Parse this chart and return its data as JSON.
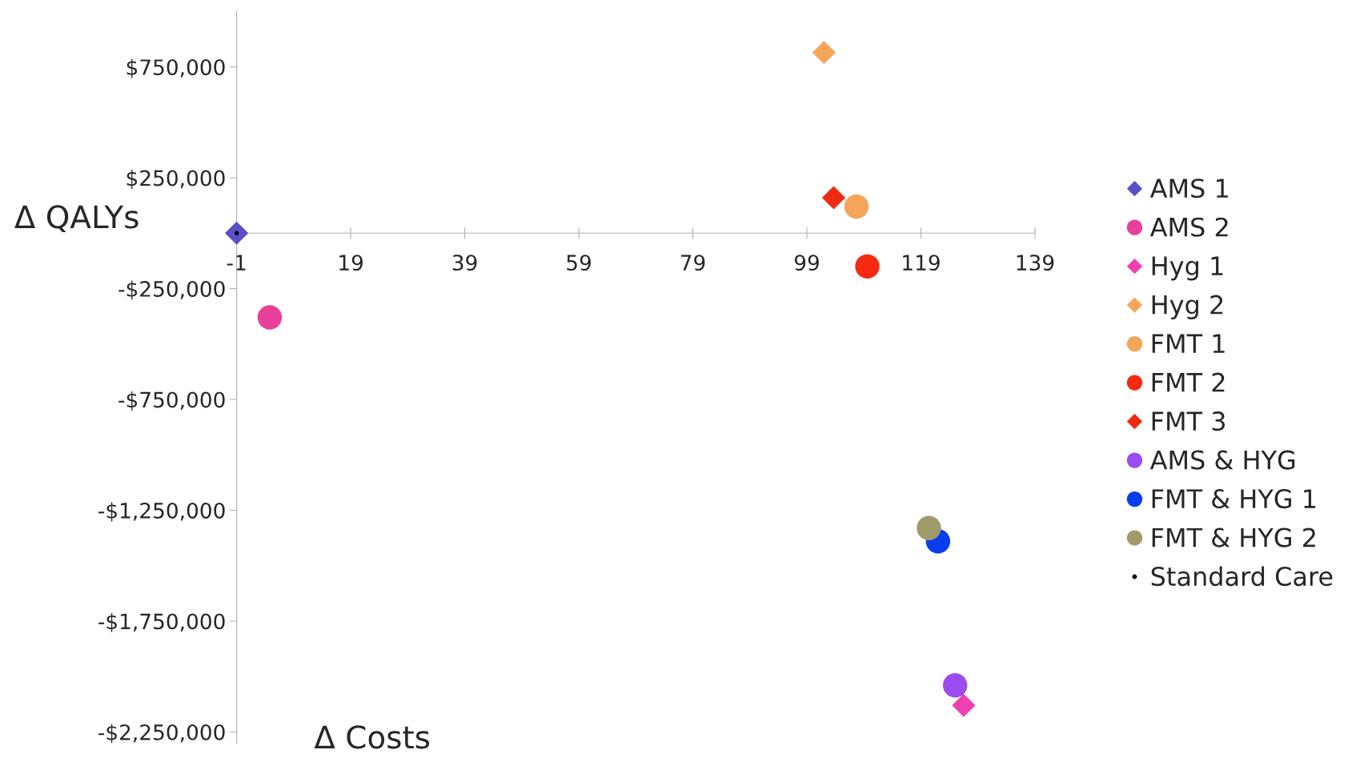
{
  "chart_data": {
    "type": "scatter",
    "xlabel": "Δ Costs",
    "ylabel": "Δ QALYs",
    "xlim": [
      -1,
      139
    ],
    "xticks": [
      -1,
      19,
      39,
      59,
      79,
      99,
      119,
      139
    ],
    "ylim": [
      -2300000,
      1000000
    ],
    "yticks": [
      {
        "value": 750000,
        "label": "$750,000"
      },
      {
        "value": 250000,
        "label": "$250,000"
      },
      {
        "value": -250000,
        "label": "-$250,000"
      },
      {
        "value": -750000,
        "label": "-$750,000"
      },
      {
        "value": -1250000,
        "label": "-$1,250,000"
      },
      {
        "value": -1750000,
        "label": "-$1,750,000"
      },
      {
        "value": -2250000,
        "label": "-$2,250,000"
      }
    ],
    "grid": false,
    "legend": "right",
    "series": [
      {
        "name": "AMS 1",
        "color": "#5a4fc8",
        "marker": "diamond",
        "x": [
          -1
        ],
        "values": [
          0
        ]
      },
      {
        "name": "AMS 2",
        "color": "#e8409a",
        "marker": "circle",
        "x": [
          4.8
        ],
        "values": [
          -380000
        ]
      },
      {
        "name": "Hyg 1",
        "color": "#f040b0",
        "marker": "diamond",
        "x": [
          126.5
        ],
        "values": [
          -2130000
        ]
      },
      {
        "name": "Hyg 2",
        "color": "#f5a55a",
        "marker": "diamond",
        "x": [
          102
        ],
        "values": [
          815000
        ]
      },
      {
        "name": "FMT 1",
        "color": "#f5a55a",
        "marker": "circle",
        "x": [
          107.7
        ],
        "values": [
          120000
        ]
      },
      {
        "name": "FMT 2",
        "color": "#f52a10",
        "marker": "circle",
        "x": [
          109.6
        ],
        "values": [
          -150000
        ]
      },
      {
        "name": "FMT 3",
        "color": "#f02a10",
        "marker": "diamond",
        "x": [
          103.7
        ],
        "values": [
          160000
        ]
      },
      {
        "name": "AMS & HYG",
        "color": "#9b4cf0",
        "marker": "circle",
        "x": [
          125
        ],
        "values": [
          -2040000
        ]
      },
      {
        "name": "FMT & HYG 1",
        "color": "#0a3cf0",
        "marker": "circle",
        "x": [
          122
        ],
        "values": [
          -1390000
        ]
      },
      {
        "name": "FMT & HYG 2",
        "color": "#a09a6a",
        "marker": "circle",
        "x": [
          120.4
        ],
        "values": [
          -1330000
        ]
      },
      {
        "name": "Standard Care",
        "color": "#000000",
        "marker": "point",
        "x": [
          -1
        ],
        "values": [
          0
        ]
      }
    ]
  }
}
